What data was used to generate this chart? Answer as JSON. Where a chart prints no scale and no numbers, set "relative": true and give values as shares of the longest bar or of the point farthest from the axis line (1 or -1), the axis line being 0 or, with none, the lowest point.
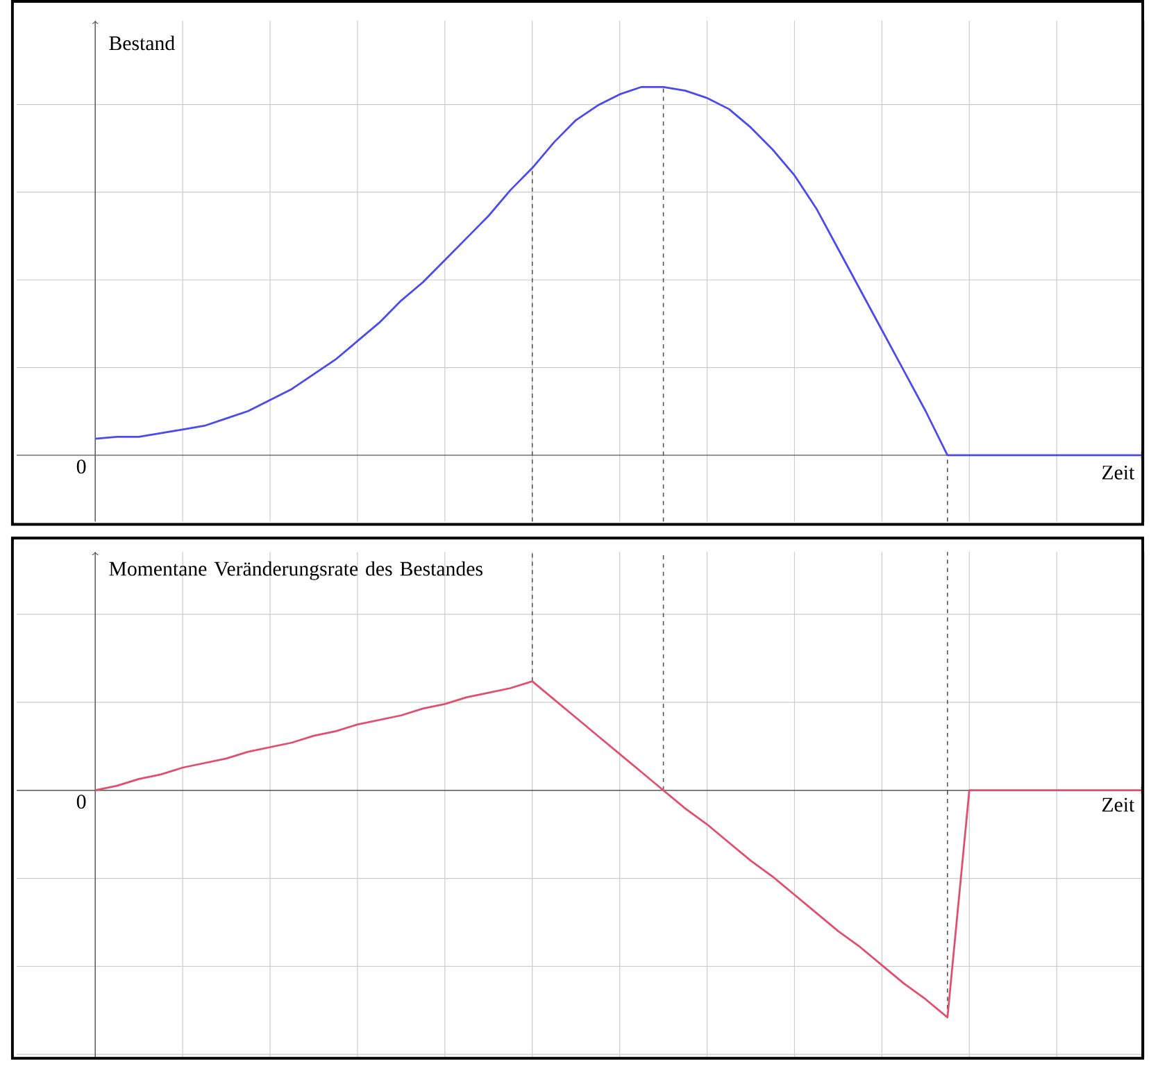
{
  "chart_data": [
    {
      "type": "line",
      "relative": true,
      "ylabel": "Bestand",
      "xlabel": "Zeit",
      "annotations": [
        "0"
      ],
      "grid": true,
      "categories": [
        null,
        null,
        null,
        null,
        null,
        null,
        null,
        null,
        null,
        null,
        null,
        null,
        null,
        null,
        null,
        null,
        null,
        null,
        null,
        null,
        null,
        null,
        null,
        null,
        null,
        null,
        null,
        null,
        null,
        null,
        null,
        null,
        null,
        null,
        null,
        null,
        null,
        null,
        null,
        null,
        null,
        null,
        null,
        null,
        null,
        null,
        null,
        null,
        null
      ],
      "series": [
        {
          "color": "#4a4aef",
          "values": [
            0.045,
            0.05,
            0.05,
            0.06,
            0.07,
            0.08,
            0.1,
            0.12,
            0.15,
            0.18,
            0.22,
            0.26,
            0.31,
            0.36,
            0.42,
            0.47,
            0.53,
            0.59,
            0.65,
            0.72,
            0.78,
            0.85,
            0.91,
            0.95,
            0.98,
            1,
            1,
            0.99,
            0.97,
            0.94,
            0.89,
            0.83,
            0.76,
            0.67,
            0.56,
            0.45,
            0.34,
            0.23,
            0.12,
            0,
            0,
            0,
            0,
            0,
            0,
            0,
            0,
            0,
            0
          ]
        }
      ]
    },
    {
      "type": "line",
      "relative": true,
      "ylabel": "Momentane Veränderungsrate des Bestandes",
      "xlabel": "Zeit",
      "annotations": [
        "0"
      ],
      "grid": true,
      "categories": [
        null,
        null,
        null,
        null,
        null,
        null,
        null,
        null,
        null,
        null,
        null,
        null,
        null,
        null,
        null,
        null,
        null,
        null,
        null,
        null,
        null,
        null,
        null,
        null,
        null,
        null,
        null,
        null,
        null,
        null,
        null,
        null,
        null,
        null,
        null,
        null,
        null,
        null,
        null,
        null,
        null,
        null,
        null,
        null,
        null,
        null,
        null,
        null,
        null
      ],
      "series": [
        {
          "color": "#e0506e",
          "values": [
            0,
            0.02,
            0.05,
            0.07,
            0.1,
            0.12,
            0.14,
            0.17,
            0.19,
            0.21,
            0.24,
            0.26,
            0.29,
            0.31,
            0.33,
            0.36,
            0.38,
            0.41,
            0.43,
            0.45,
            0.48,
            0.4,
            0.32,
            0.24,
            0.16,
            0.08,
            0,
            -0.08,
            -0.15,
            -0.23,
            -0.31,
            -0.38,
            -0.46,
            -0.54,
            -0.62,
            -0.69,
            -0.77,
            -0.85,
            -0.92,
            -1,
            0,
            0,
            0,
            0,
            0,
            0,
            0,
            0,
            0
          ]
        }
      ]
    }
  ]
}
